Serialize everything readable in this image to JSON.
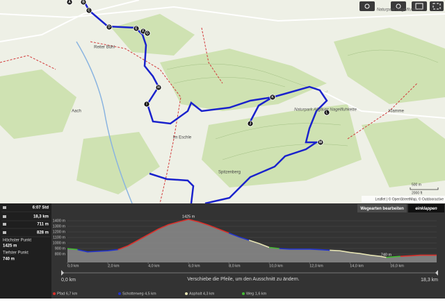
{
  "map": {
    "labels": [
      "Naturpark Nagelfluhkette",
      "Naturpark Allgäuer Nagelfluhkette",
      "Reiter Bühl",
      "Spitzenberg",
      "Im Eschle",
      "Klamme",
      "Aach"
    ],
    "waypoints": [
      "A",
      "B",
      "C",
      "D",
      "E",
      "F",
      "G",
      "H",
      "I",
      "J",
      "K",
      "L",
      "M"
    ],
    "attribution": "Leaflet | © OpenStreetMap, © Outdooractive",
    "scale": [
      "500 m",
      "2000 ft"
    ]
  },
  "buttons": {
    "edit": "Wegearten bearbeiten",
    "collapse": "einklappen"
  },
  "stats": [
    {
      "value": "6:07 Std"
    },
    {
      "value": "18,3 km"
    },
    {
      "value": "711 m"
    },
    {
      "value": "828 m"
    },
    {
      "label": "Höchster Punkt",
      "value": "1425 m"
    },
    {
      "label": "Tiefster Punkt",
      "value": "740 m"
    }
  ],
  "slider": {
    "start": "0,0 km",
    "end": "18,3 km",
    "hint": "Verschiebe die Pfeile, um den Ausschnitt zu ändern."
  },
  "chart_data": {
    "type": "area",
    "x": [
      0,
      0.5,
      1,
      2,
      2.5,
      3,
      3.5,
      4,
      4.5,
      5,
      5.5,
      6,
      6.5,
      7,
      7.5,
      8,
      8.5,
      9,
      9.5,
      10,
      10.5,
      11,
      12,
      12.5,
      13,
      13.5,
      14,
      14.5,
      15,
      15.5,
      15.8,
      16.5,
      17,
      17.5,
      18.3
    ],
    "values": [
      900,
      880,
      840,
      860,
      880,
      950,
      1050,
      1150,
      1250,
      1330,
      1380,
      1425,
      1380,
      1320,
      1250,
      1180,
      1110,
      1050,
      990,
      920,
      900,
      890,
      890,
      880,
      870,
      860,
      830,
      810,
      780,
      760,
      740,
      760,
      770,
      780,
      780
    ],
    "fill": "#8c8c8c",
    "series": [
      {
        "name": "Pfad 6,7 km",
        "color": "#d9302b",
        "values": [
          null,
          null,
          null,
          null,
          880,
          950,
          1050,
          1150,
          1250,
          1330,
          1380,
          1425,
          1380,
          1320,
          1250,
          1180,
          null,
          null,
          null,
          null,
          null,
          null,
          null,
          null,
          null,
          null,
          null,
          null,
          null,
          null,
          null,
          760,
          770,
          780,
          780
        ]
      },
      {
        "name": "Schotterweg 4,5 km",
        "color": "#2233cc",
        "values": [
          null,
          880,
          840,
          860,
          880,
          null,
          null,
          null,
          null,
          null,
          null,
          null,
          null,
          null,
          null,
          1180,
          1110,
          1050,
          null,
          null,
          900,
          890,
          890,
          880,
          870,
          null,
          null,
          null,
          null,
          null,
          null,
          null,
          null,
          null,
          null
        ]
      },
      {
        "name": "Asphalt 4,3 km",
        "color": "#e6e4b4",
        "values": [
          null,
          null,
          null,
          null,
          null,
          null,
          null,
          null,
          null,
          null,
          null,
          null,
          null,
          null,
          null,
          null,
          null,
          1050,
          990,
          920,
          null,
          null,
          null,
          null,
          870,
          860,
          830,
          810,
          780,
          760,
          740,
          null,
          null,
          null,
          null
        ]
      },
      {
        "name": "Weg 1,6 km",
        "color": "#44bb33",
        "values": [
          900,
          880,
          null,
          null,
          null,
          null,
          null,
          null,
          null,
          null,
          null,
          null,
          null,
          null,
          null,
          null,
          null,
          null,
          null,
          920,
          900,
          null,
          null,
          null,
          null,
          null,
          null,
          null,
          null,
          null,
          740,
          760,
          null,
          null,
          null
        ]
      }
    ],
    "xlim": [
      0,
      18.3
    ],
    "xticks": [
      {
        "value": 0,
        "label": "0,0 km"
      },
      {
        "value": 2,
        "label": "2,0 km"
      },
      {
        "value": 4,
        "label": "4,0 km"
      },
      {
        "value": 6,
        "label": "6,0 km"
      },
      {
        "value": 8,
        "label": "8,0 km"
      },
      {
        "value": 10,
        "label": "10,0 km"
      },
      {
        "value": 12,
        "label": "12,0 km"
      },
      {
        "value": 14,
        "label": "14,0 km"
      },
      {
        "value": 16,
        "label": "16,0 km"
      }
    ],
    "ylim": [
      650,
      1450
    ],
    "yticks": [
      {
        "value": 800,
        "label": "800 m"
      },
      {
        "value": 900,
        "label": "900 m"
      },
      {
        "value": 1000,
        "label": "1000 m"
      },
      {
        "value": 1100,
        "label": "1100 m"
      },
      {
        "value": 1200,
        "label": "1200 m"
      },
      {
        "value": 1300,
        "label": "1300 m"
      },
      {
        "value": 1400,
        "label": "1400 m"
      }
    ],
    "annotations": [
      {
        "x": 6,
        "y": 1425,
        "label": "1425 m"
      },
      {
        "x": 15.8,
        "y": 740,
        "label": "740 m"
      }
    ]
  }
}
